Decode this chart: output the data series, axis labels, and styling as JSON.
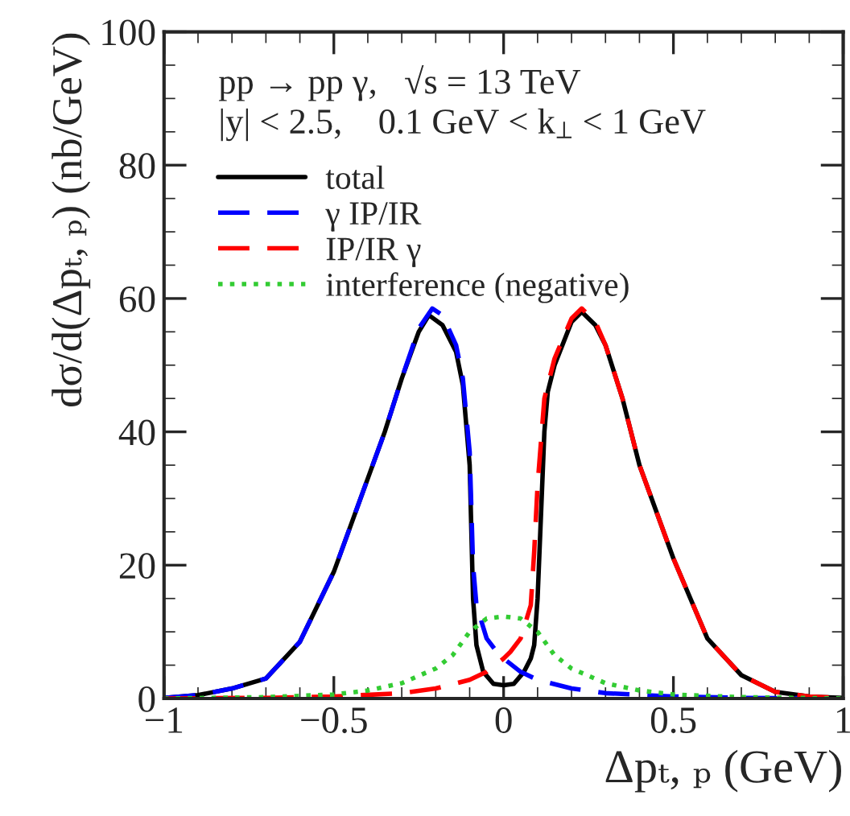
{
  "chart_data": {
    "type": "line",
    "xlabel": "Δpₜ, ₚ (GeV)",
    "ylabel": "dσ/d(Δpₜ, ₚ) (nb/GeV)",
    "annotations": [
      "pp → pp γ,   √s = 13 TeV",
      "|y| < 2.5,    0.1 GeV < k$_{⊥}$ < 1 GeV"
    ],
    "xlim": [
      -1,
      1
    ],
    "ylim": [
      0,
      100
    ],
    "xticks": [
      {
        "value": -1,
        "label": "−1"
      },
      {
        "value": -0.5,
        "label": "−0.5"
      },
      0,
      0.5,
      1
    ],
    "yticks": [
      0,
      20,
      40,
      60,
      80,
      100
    ],
    "grid": false,
    "legend": "top left",
    "series": [
      {
        "name": "total",
        "color": "#000000",
        "line_style": "solid",
        "x": [
          -1,
          -0.9,
          -0.8,
          -0.7,
          -0.6,
          -0.5,
          -0.4,
          -0.35,
          -0.3,
          -0.25,
          -0.22,
          -0.18,
          -0.14,
          -0.12,
          -0.1,
          -0.09,
          -0.08,
          -0.06,
          -0.03,
          0,
          0.03,
          0.06,
          0.08,
          0.09,
          0.1,
          0.12,
          0.13,
          0.15,
          0.2,
          0.23,
          0.27,
          0.3,
          0.35,
          0.4,
          0.5,
          0.6,
          0.7,
          0.8,
          0.9,
          1
        ],
        "values": [
          0.1,
          0.5,
          1.5,
          3,
          8.5,
          19,
          33,
          40,
          48,
          55,
          57.5,
          56,
          52,
          47,
          35,
          15,
          8,
          4,
          2.2,
          2,
          2.2,
          4,
          6,
          8,
          15,
          40,
          46,
          50,
          56.5,
          58,
          56,
          53,
          45,
          35,
          21,
          9,
          3.5,
          1,
          0.3,
          0.1
        ]
      },
      {
        "name": "γ IP/IR",
        "color": "#0000ff",
        "line_style": "dashed",
        "x": [
          -1,
          -0.9,
          -0.8,
          -0.7,
          -0.6,
          -0.5,
          -0.4,
          -0.35,
          -0.3,
          -0.25,
          -0.21,
          -0.18,
          -0.14,
          -0.12,
          -0.1,
          -0.09,
          -0.08,
          -0.05,
          -0.02,
          0,
          0.05,
          0.1,
          0.2,
          0.3,
          0.5,
          0.7,
          1
        ],
        "values": [
          0.1,
          0.5,
          1.5,
          3,
          8.5,
          19,
          33,
          40,
          48,
          55.5,
          58.5,
          57.5,
          53,
          48,
          37,
          20,
          14,
          9,
          7,
          6,
          4,
          2.8,
          1.5,
          0.8,
          0.3,
          0.1,
          0
        ]
      },
      {
        "name": "IP/IR γ",
        "color": "#ff0000",
        "line_style": "dashed",
        "x": [
          -1,
          -0.7,
          -0.5,
          -0.3,
          -0.2,
          -0.1,
          -0.05,
          0,
          0.02,
          0.05,
          0.08,
          0.09,
          0.1,
          0.12,
          0.15,
          0.2,
          0.23,
          0.27,
          0.3,
          0.35,
          0.4,
          0.5,
          0.6,
          0.7,
          0.8,
          0.9,
          1
        ],
        "values": [
          0,
          0.1,
          0.3,
          0.8,
          1.5,
          2.8,
          4,
          6,
          7,
          9,
          14,
          22,
          32,
          45,
          51,
          57,
          58.5,
          56.5,
          53,
          45,
          35,
          21,
          9,
          3.5,
          1,
          0.3,
          0.1
        ]
      },
      {
        "name": "interference (negative)",
        "color": "#33cc33",
        "line_style": "dotted",
        "x": [
          -1,
          -0.7,
          -0.5,
          -0.4,
          -0.3,
          -0.2,
          -0.15,
          -0.1,
          -0.05,
          0,
          0.05,
          0.1,
          0.15,
          0.2,
          0.3,
          0.4,
          0.5,
          0.7,
          1
        ],
        "values": [
          0,
          0.2,
          0.6,
          1.2,
          2.3,
          4.5,
          6.5,
          10,
          12,
          12.3,
          12,
          10,
          6.5,
          4.5,
          2.3,
          1.2,
          0.6,
          0.2,
          0
        ]
      }
    ]
  }
}
